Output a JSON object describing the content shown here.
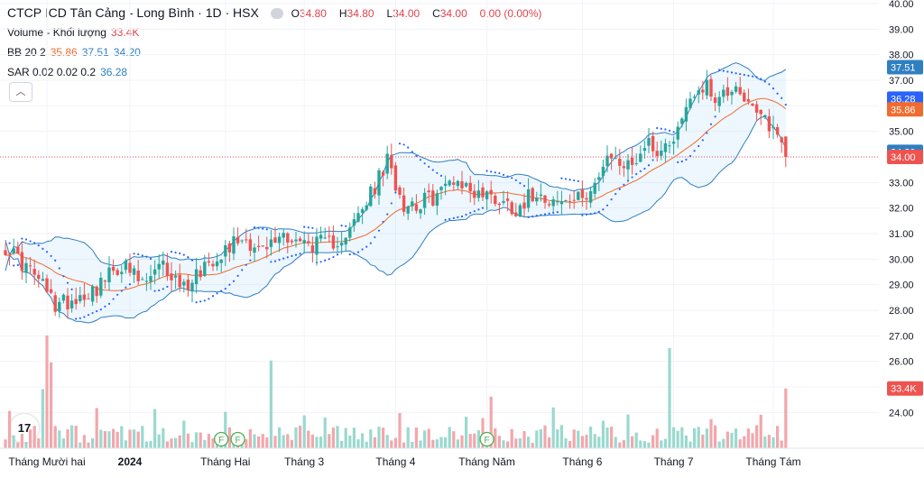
{
  "legend": {
    "title": "CTCP ICD Tân Cảng - Long Bình · 1D · HSX",
    "ohlc": {
      "o_label": "O",
      "o": "34.80",
      "h_label": "H",
      "h": "34.80",
      "l_label": "L",
      "l": "34.00",
      "c_label": "C",
      "c": "34.00",
      "chg": "0.00 (0.00%)"
    },
    "volume_label": "Volume - Khối lượng",
    "volume_value": "33.4K",
    "bb_label": "BB 20 2",
    "bb_basis": "35.86",
    "bb_upper": "37.51",
    "bb_lower": "34.20",
    "sar_label": "SAR 0.02 0.02 0.2",
    "sar_value": "36.28"
  },
  "collapse_icon": "chevron-up-icon",
  "logo_text": "17",
  "colors": {
    "up": "#26a69a",
    "down": "#ef5350",
    "up_vol": "#9ad9cf",
    "down_vol": "#f2a7ac",
    "bb_basis": "#f06b2f",
    "bb_band": "#2f7fc1",
    "sar": "#2962ff"
  },
  "chart_data": {
    "type": "candlestick",
    "title": "CTCP ICD Tân Cảng - Long Bình · 1D · HSX",
    "ylim": [
      22.6,
      40.0
    ],
    "yticks": [
      "24.00",
      "25.00",
      "26.00",
      "27.00",
      "28.00",
      "29.00",
      "30.00",
      "31.00",
      "32.00",
      "33.00",
      "34.00",
      "35.00",
      "36.00",
      "37.00",
      "38.00",
      "39.00",
      "40.00"
    ],
    "x_labels": [
      {
        "label": "Tháng Mười hai",
        "bar": 10
      },
      {
        "label": "2024",
        "bar": 30
      },
      {
        "label": "Tháng Hai",
        "bar": 53
      },
      {
        "label": "Tháng 3",
        "bar": 72
      },
      {
        "label": "Tháng 4",
        "bar": 94
      },
      {
        "label": "Tháng Năm",
        "bar": 116
      },
      {
        "label": "Tháng 6",
        "bar": 139
      },
      {
        "label": "Tháng 7",
        "bar": 161
      },
      {
        "label": "Tháng Tám",
        "bar": 185
      }
    ],
    "price_labels": [
      {
        "text": "37.51",
        "value": 37.51,
        "color": "#2f7fc1"
      },
      {
        "text": "36.28",
        "value": 36.28,
        "color": "#2962ff"
      },
      {
        "text": "35.86",
        "value": 35.86,
        "color": "#f06b2f"
      },
      {
        "text": "34.20",
        "value": 34.2,
        "color": "#2f7fc1"
      },
      {
        "text": "34.00",
        "value": 34.0,
        "color": "#ef5350"
      }
    ],
    "volume_label": {
      "text": "33.4K",
      "value": 33.4
    },
    "volume_max": 63,
    "last_price": 34.0,
    "fundamentals_markers": [
      {
        "text": "F",
        "bar": 52
      },
      {
        "text": "F",
        "bar": 56
      },
      {
        "text": "F",
        "bar": 116
      }
    ],
    "anchors": [
      [
        0,
        30.5
      ],
      [
        8,
        29.2
      ],
      [
        12,
        28.2
      ],
      [
        17,
        28.5
      ],
      [
        22,
        28.9
      ],
      [
        28,
        29.8
      ],
      [
        33,
        29.0
      ],
      [
        38,
        29.7
      ],
      [
        43,
        28.9
      ],
      [
        48,
        29.8
      ],
      [
        52,
        30.3
      ],
      [
        57,
        30.9
      ],
      [
        62,
        30.3
      ],
      [
        67,
        31.0
      ],
      [
        72,
        30.6
      ],
      [
        78,
        30.6
      ],
      [
        83,
        31.1
      ],
      [
        88,
        32.5
      ],
      [
        92,
        33.8
      ],
      [
        96,
        32.2
      ],
      [
        100,
        32.2
      ],
      [
        104,
        32.5
      ],
      [
        108,
        33.2
      ],
      [
        112,
        32.7
      ],
      [
        118,
        32.4
      ],
      [
        123,
        32.0
      ],
      [
        128,
        32.7
      ],
      [
        133,
        32.2
      ],
      [
        138,
        32.3
      ],
      [
        143,
        33.2
      ],
      [
        146,
        34.0
      ],
      [
        150,
        33.6
      ],
      [
        155,
        34.6
      ],
      [
        158,
        34.2
      ],
      [
        162,
        35.1
      ],
      [
        165,
        36.4
      ],
      [
        168,
        36.8
      ],
      [
        172,
        36.3
      ],
      [
        176,
        36.9
      ],
      [
        180,
        35.7
      ],
      [
        184,
        35.3
      ],
      [
        187,
        34.6
      ],
      [
        188,
        34.0
      ]
    ],
    "vol_spikes": [
      [
        9,
        33
      ],
      [
        10,
        63
      ],
      [
        11,
        48
      ],
      [
        64,
        49
      ],
      [
        160,
        56
      ],
      [
        188,
        33.4
      ]
    ],
    "bb_period": 20,
    "bb_mult": 2
  }
}
